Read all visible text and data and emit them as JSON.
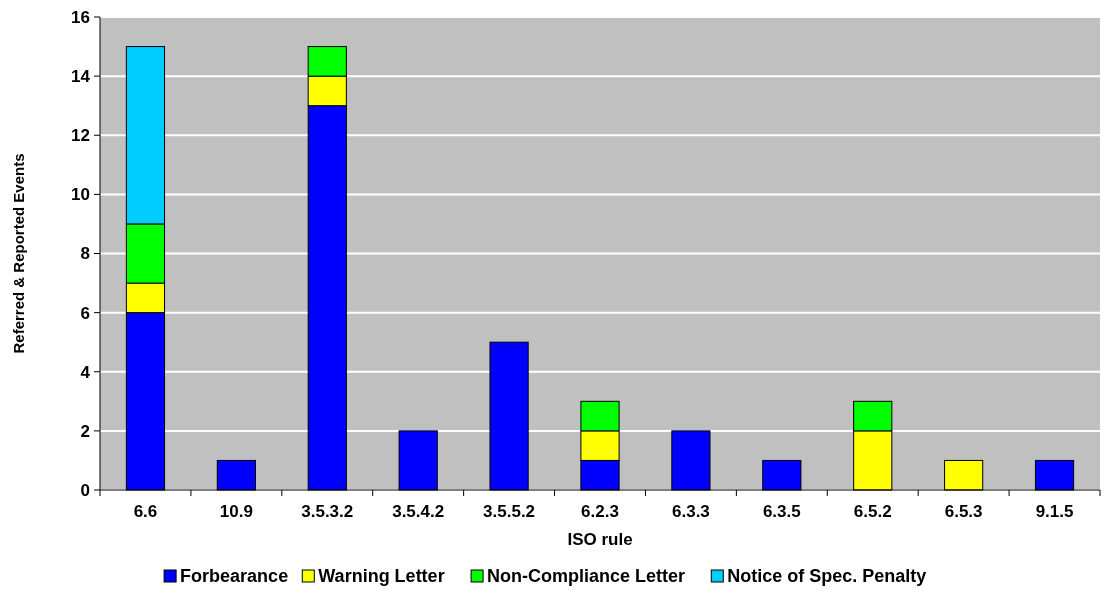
{
  "chart_data": {
    "type": "bar",
    "stacked": true,
    "xlabel": "ISO rule",
    "ylabel": "Referred & Reported Events",
    "categories": [
      "6.6",
      "10.9",
      "3.5.3.2",
      "3.5.4.2",
      "3.5.5.2",
      "6.2.3",
      "6.3.3",
      "6.3.5",
      "6.5.2",
      "6.5.3",
      "9.1.5"
    ],
    "series": [
      {
        "name": "Forbearance",
        "color": "#0000ff",
        "values": [
          6,
          1,
          13,
          2,
          5,
          1,
          2,
          1,
          null,
          null,
          1
        ]
      },
      {
        "name": "Warning Letter",
        "color": "#ffff00",
        "values": [
          1,
          null,
          1,
          null,
          null,
          1,
          null,
          null,
          2,
          1,
          null
        ]
      },
      {
        "name": "Non-Compliance Letter",
        "color": "#00ff00",
        "values": [
          2,
          null,
          1,
          null,
          null,
          1,
          null,
          null,
          1,
          null,
          null
        ]
      },
      {
        "name": "Notice of Spec. Penalty",
        "color": "#00ccff",
        "values": [
          6,
          null,
          null,
          null,
          null,
          null,
          null,
          null,
          null,
          null,
          null
        ]
      }
    ],
    "ylim": [
      0,
      16
    ],
    "yticks": [
      0,
      2,
      4,
      6,
      8,
      10,
      12,
      14,
      16
    ],
    "grid": "y",
    "legend": "bottom"
  }
}
